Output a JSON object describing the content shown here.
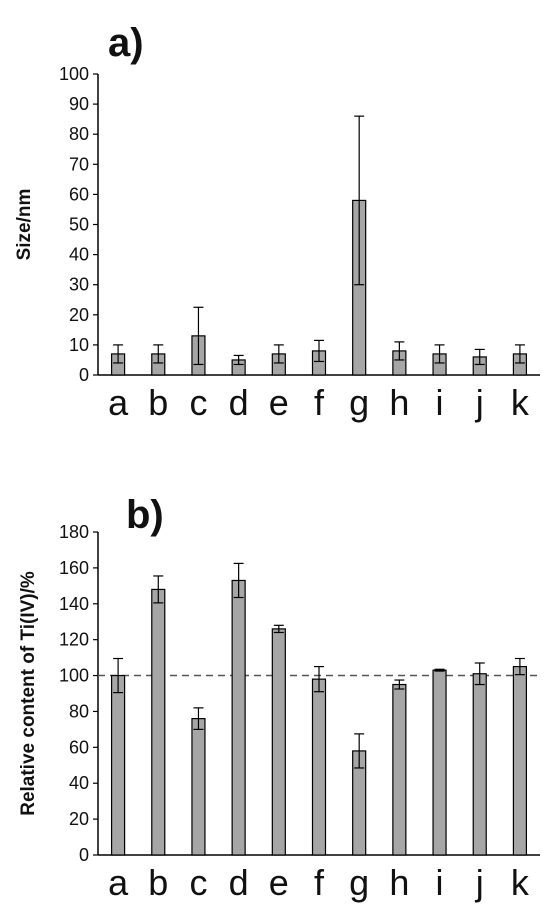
{
  "chart_data": [
    {
      "type": "bar",
      "panel_label": "a)",
      "ylabel": "Size/nm",
      "ylim": [
        0,
        100
      ],
      "yticks": [
        0,
        10,
        20,
        30,
        40,
        50,
        60,
        70,
        80,
        90,
        100
      ],
      "categories": [
        "a",
        "b",
        "c",
        "d",
        "e",
        "f",
        "g",
        "h",
        "i",
        "j",
        "k"
      ],
      "values": [
        7,
        7,
        13,
        5,
        7,
        8,
        58,
        8,
        7,
        6,
        7
      ],
      "errors": [
        3,
        3,
        9.5,
        1.5,
        3,
        3.5,
        28,
        3,
        3,
        2.5,
        3
      ],
      "grid": false,
      "bar_color": "#a6a6a6"
    },
    {
      "type": "bar",
      "panel_label": "b)",
      "ylabel": "Relative content of Ti(IV)/%",
      "ylim": [
        0,
        180
      ],
      "yticks": [
        0,
        20,
        40,
        60,
        80,
        100,
        120,
        140,
        160,
        180
      ],
      "categories": [
        "a",
        "b",
        "c",
        "d",
        "e",
        "f",
        "g",
        "h",
        "i",
        "j",
        "k"
      ],
      "values": [
        100,
        148,
        76,
        153,
        126,
        98,
        58,
        95,
        103,
        101,
        105
      ],
      "errors": [
        9.5,
        7.5,
        6,
        9.5,
        2,
        7,
        9.5,
        2.5,
        0.5,
        6,
        4.5
      ],
      "reference_line": 100,
      "grid": false,
      "bar_color": "#a6a6a6"
    }
  ]
}
